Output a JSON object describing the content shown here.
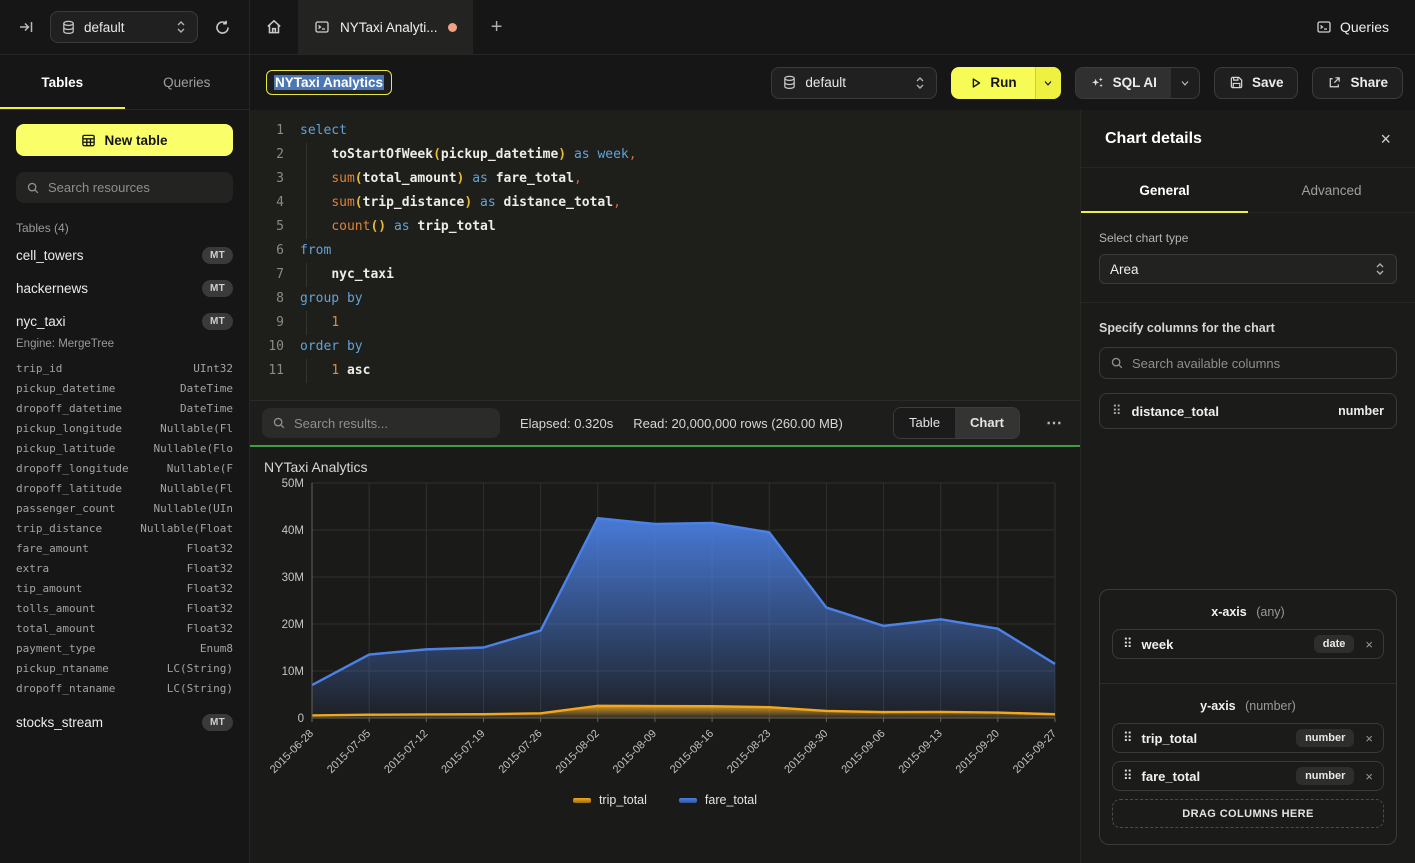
{
  "icons": {
    "plus": "+",
    "more": "⋯",
    "close": "×",
    "drag_handle": "⠿"
  },
  "topbar": {
    "database": "default",
    "tab_title": "NYTaxi Analyti...",
    "queries_label": "Queries"
  },
  "sidebar": {
    "tabs": [
      "Tables",
      "Queries"
    ],
    "new_table_label": "New table",
    "search_placeholder": "Search resources",
    "section_label": "Tables (4)",
    "tables": [
      {
        "name": "cell_towers",
        "badge": "MT"
      },
      {
        "name": "hackernews",
        "badge": "MT"
      },
      {
        "name": "nyc_taxi",
        "badge": "MT",
        "engine": "Engine: MergeTree",
        "columns": [
          [
            "trip_id",
            "UInt32"
          ],
          [
            "pickup_datetime",
            "DateTime"
          ],
          [
            "dropoff_datetime",
            "DateTime"
          ],
          [
            "pickup_longitude",
            "Nullable(Fl"
          ],
          [
            "pickup_latitude",
            "Nullable(Flo"
          ],
          [
            "dropoff_longitude",
            "Nullable(F"
          ],
          [
            "dropoff_latitude",
            "Nullable(Fl"
          ],
          [
            "passenger_count",
            "Nullable(UIn"
          ],
          [
            "trip_distance",
            "Nullable(Float"
          ],
          [
            "fare_amount",
            "Float32"
          ],
          [
            "extra",
            "Float32"
          ],
          [
            "tip_amount",
            "Float32"
          ],
          [
            "tolls_amount",
            "Float32"
          ],
          [
            "total_amount",
            "Float32"
          ],
          [
            "payment_type",
            "Enum8"
          ],
          [
            "pickup_ntaname",
            "LC(String)"
          ],
          [
            "dropoff_ntaname",
            "LC(String)"
          ]
        ]
      },
      {
        "name": "stocks_stream",
        "badge": "MT"
      }
    ]
  },
  "toolbar": {
    "query_title": "NYTaxi Analytics",
    "database": "default",
    "run_label": "Run",
    "sql_ai_label": "SQL AI",
    "save_label": "Save",
    "share_label": "Share"
  },
  "editor": {
    "lines": [
      [
        [
          "kw",
          "select"
        ]
      ],
      [
        [
          "sp",
          "    "
        ],
        [
          "idb",
          "toStartOfWeek"
        ],
        [
          "par",
          "("
        ],
        [
          "idb",
          "pickup_datetime"
        ],
        [
          "par",
          ")"
        ],
        [
          "sp",
          " "
        ],
        [
          "kw",
          "as"
        ],
        [
          "sp",
          " "
        ],
        [
          "kw",
          "week"
        ],
        [
          "com",
          ","
        ]
      ],
      [
        [
          "sp",
          "    "
        ],
        [
          "fn",
          "sum"
        ],
        [
          "par",
          "("
        ],
        [
          "idb",
          "total_amount"
        ],
        [
          "par",
          ")"
        ],
        [
          "sp",
          " "
        ],
        [
          "kw",
          "as"
        ],
        [
          "sp",
          " "
        ],
        [
          "idb",
          "fare_total"
        ],
        [
          "com",
          ","
        ]
      ],
      [
        [
          "sp",
          "    "
        ],
        [
          "fn",
          "sum"
        ],
        [
          "par",
          "("
        ],
        [
          "idb",
          "trip_distance"
        ],
        [
          "par",
          ")"
        ],
        [
          "sp",
          " "
        ],
        [
          "kw",
          "as"
        ],
        [
          "sp",
          " "
        ],
        [
          "idb",
          "distance_total"
        ],
        [
          "com",
          ","
        ]
      ],
      [
        [
          "sp",
          "    "
        ],
        [
          "fn",
          "count"
        ],
        [
          "par",
          "()"
        ],
        [
          "sp",
          " "
        ],
        [
          "kw",
          "as"
        ],
        [
          "sp",
          " "
        ],
        [
          "idb",
          "trip_total"
        ]
      ],
      [
        [
          "kw",
          "from"
        ]
      ],
      [
        [
          "sp",
          "    "
        ],
        [
          "idb",
          "nyc_taxi"
        ]
      ],
      [
        [
          "kw",
          "group by"
        ]
      ],
      [
        [
          "sp",
          "    "
        ],
        [
          "num",
          "1"
        ]
      ],
      [
        [
          "kw",
          "order by"
        ]
      ],
      [
        [
          "sp",
          "    "
        ],
        [
          "num",
          "1"
        ],
        [
          "sp",
          " "
        ],
        [
          "idb",
          "asc"
        ]
      ]
    ]
  },
  "results_bar": {
    "search_placeholder": "Search results...",
    "elapsed": "Elapsed: 0.320s",
    "read": "Read: 20,000,000 rows (260.00 MB)",
    "views": [
      "Table",
      "Chart"
    ],
    "active_view": "Chart"
  },
  "chart_data": {
    "type": "area",
    "title": "NYTaxi Analytics",
    "x": [
      "2015-06-28",
      "2015-07-05",
      "2015-07-12",
      "2015-07-19",
      "2015-07-26",
      "2015-08-02",
      "2015-08-09",
      "2015-08-16",
      "2015-08-23",
      "2015-08-30",
      "2015-09-06",
      "2015-09-13",
      "2015-09-20",
      "2015-09-27"
    ],
    "series": [
      {
        "name": "trip_total",
        "color": "#F2A71D",
        "values": [
          550000,
          700000,
          750000,
          800000,
          1000000,
          2600000,
          2550000,
          2500000,
          2300000,
          1500000,
          1250000,
          1300000,
          1150000,
          800000
        ]
      },
      {
        "name": "fare_total",
        "color": "#4C82E8",
        "values": [
          7000000,
          13500000,
          14600000,
          15000000,
          18600000,
          42500000,
          41300000,
          41500000,
          39500000,
          23500000,
          19600000,
          21000000,
          19000000,
          11500000
        ]
      }
    ],
    "ylim": [
      0,
      50000000
    ],
    "y_ticks": [
      "0",
      "10M",
      "20M",
      "30M",
      "40M",
      "50M"
    ],
    "legend_position": "bottom",
    "grid": true
  },
  "panel": {
    "title": "Chart details",
    "tabs": [
      "General",
      "Advanced"
    ],
    "active_tab": "General",
    "chart_type_label": "Select chart type",
    "chart_type_value": "Area",
    "columns_label": "Specify columns for the chart",
    "search_placeholder": "Search available columns",
    "available_columns": [
      {
        "name": "distance_total",
        "type": "number"
      }
    ],
    "x_axis": {
      "title": "x-axis",
      "constraint": "(any)",
      "chips": [
        {
          "name": "week",
          "type": "date"
        }
      ]
    },
    "y_axis": {
      "title": "y-axis",
      "constraint": "(number)",
      "chips": [
        {
          "name": "trip_total",
          "type": "number"
        },
        {
          "name": "fare_total",
          "type": "number"
        }
      ]
    },
    "drop_zone_label": "DRAG COLUMNS HERE"
  }
}
